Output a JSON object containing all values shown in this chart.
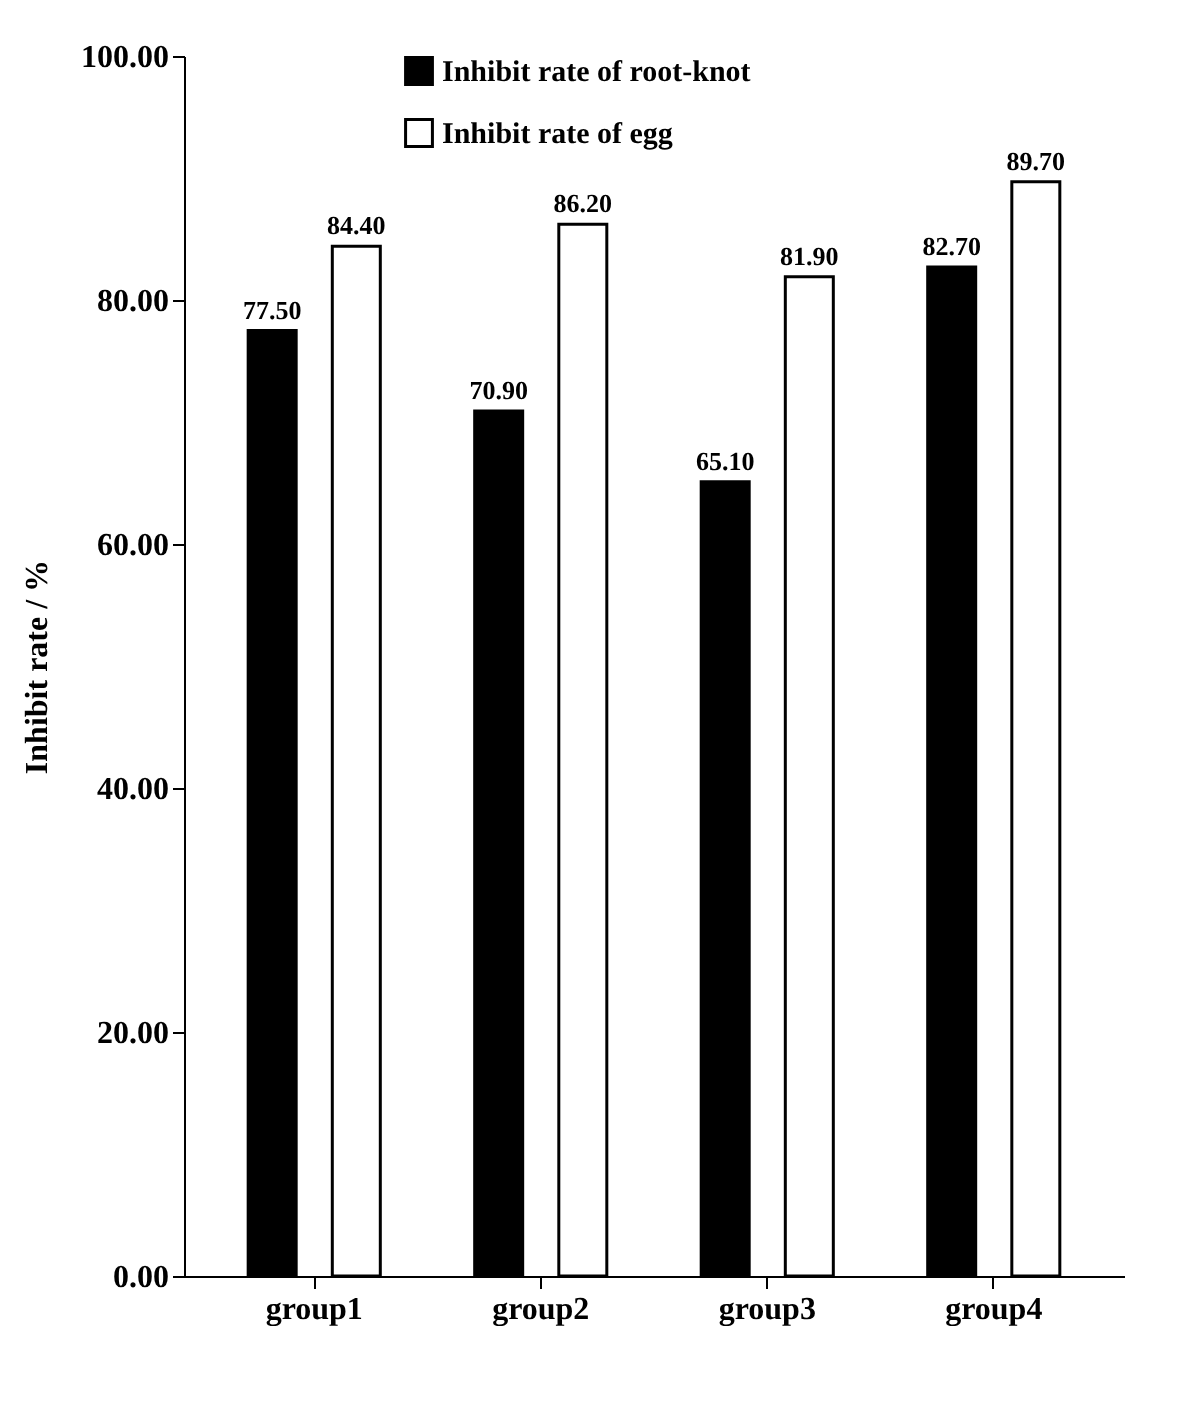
{
  "chart_data": {
    "type": "bar",
    "ylabel": "Inhibit rate / %",
    "categories": [
      "group1",
      "group2",
      "group3",
      "group4"
    ],
    "series": [
      {
        "name": "Inhibit rate of root-knot",
        "color": "#000000",
        "values": [
          77.5,
          70.9,
          65.1,
          82.7
        ],
        "value_labels": [
          "77.50",
          "70.90",
          "65.10",
          "82.70"
        ]
      },
      {
        "name": "Inhibit rate of egg",
        "color": "#ffffff",
        "values": [
          84.4,
          86.2,
          81.9,
          89.7
        ],
        "value_labels": [
          "84.40",
          "86.20",
          "81.90",
          "89.70"
        ]
      }
    ],
    "ylim": [
      0,
      100
    ],
    "yticks": [
      {
        "value": 0,
        "label": "0.00"
      },
      {
        "value": 20,
        "label": "20.00"
      },
      {
        "value": 40,
        "label": "40.00"
      },
      {
        "value": 60,
        "label": "60.00"
      },
      {
        "value": 80,
        "label": "80.00"
      },
      {
        "value": 100,
        "label": "100.00"
      }
    ],
    "grid": false,
    "legend": "top left"
  }
}
